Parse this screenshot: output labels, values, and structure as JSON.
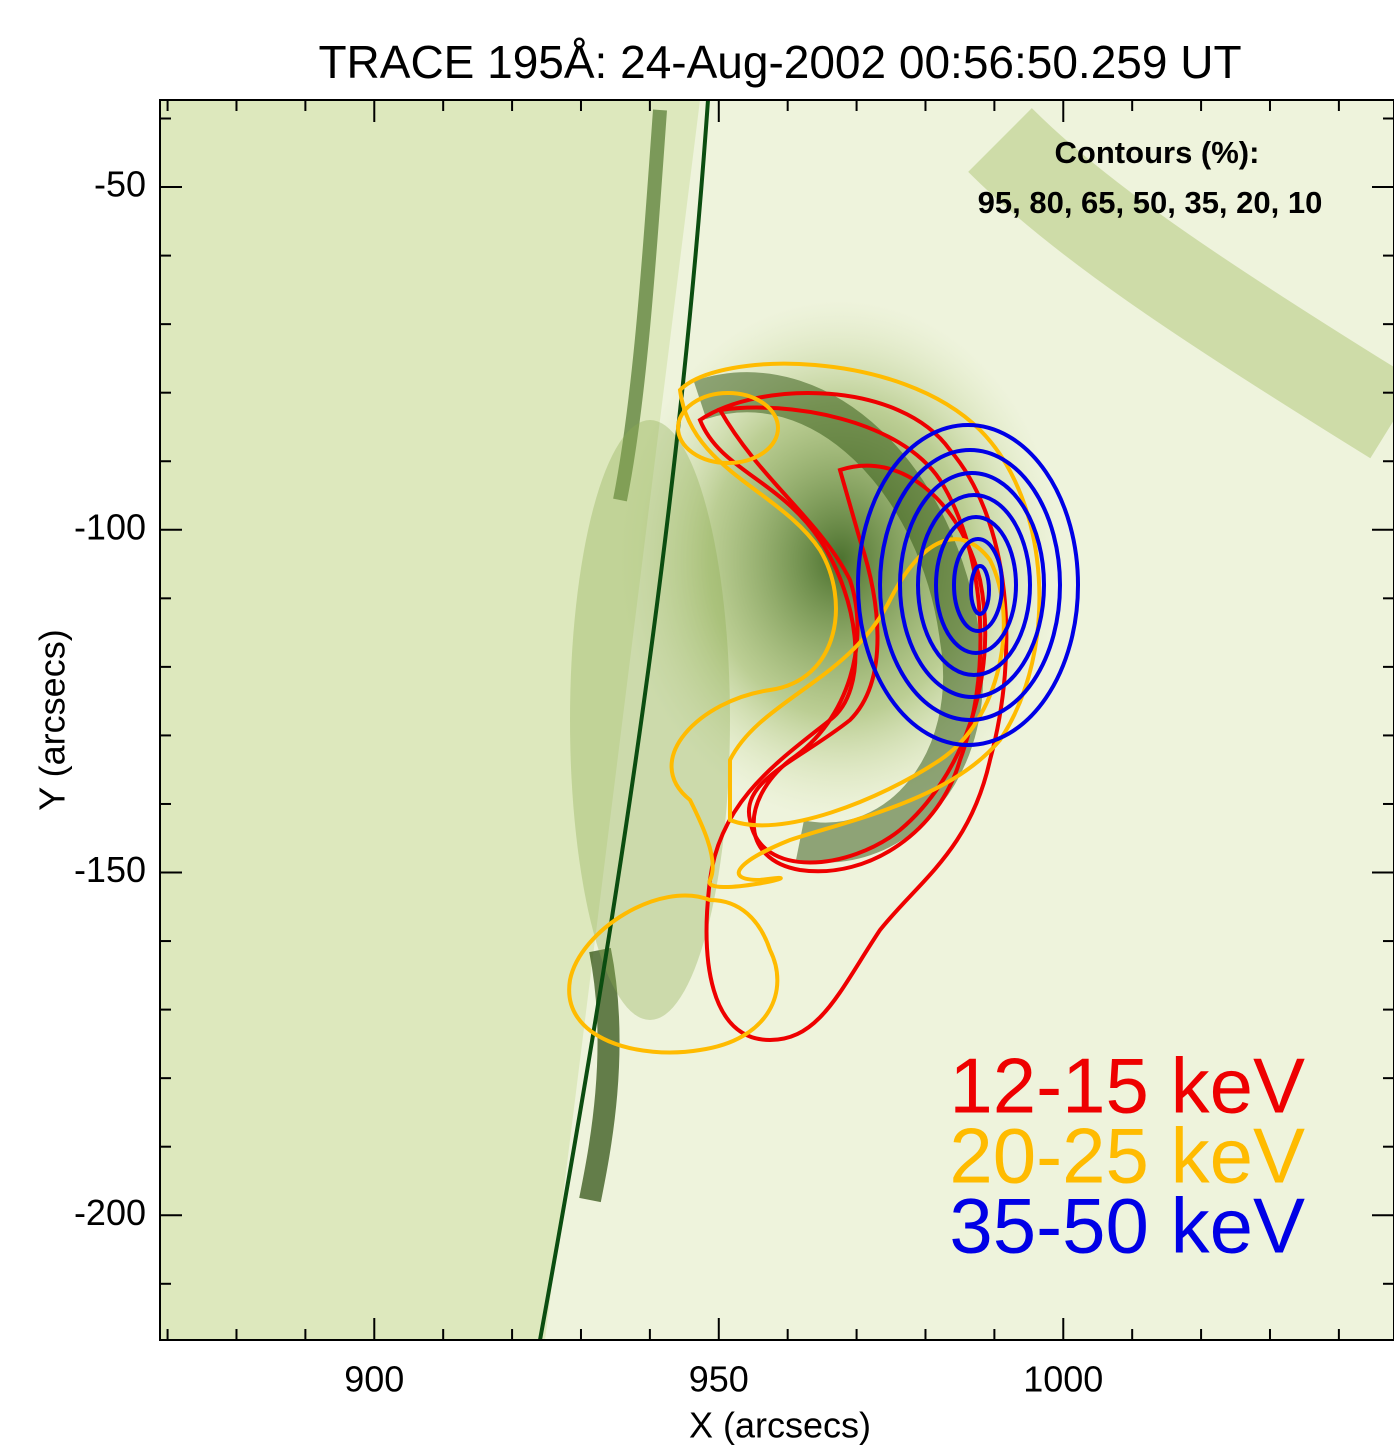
{
  "chart_data": {
    "type": "image",
    "title": "TRACE 195Å:  24-Aug-2002 00:56:50.259 UT",
    "x_label": "X (arcsecs)",
    "y_label": "Y (arcsecs)",
    "xlim": [
      868.9,
      1048
    ],
    "ylim": [
      -218.2,
      -37.3
    ],
    "xticks": [
      900,
      950,
      1000
    ],
    "yticks": [
      -50,
      -100,
      -150,
      -200
    ],
    "xminorticks": [
      870,
      880,
      890,
      910,
      920,
      930,
      940,
      960,
      970,
      980,
      990,
      1010,
      1020,
      1030,
      1040
    ],
    "yminorticks": [
      -40,
      -60,
      -70,
      -80,
      -90,
      -110,
      -120,
      -130,
      -140,
      -160,
      -170,
      -180,
      -190,
      -210
    ],
    "annotation": [
      "Contours (%):",
      "95, 80, 65, 50, 35, 20, 10"
    ],
    "series": [
      {
        "name": "12-15 keV",
        "color": "#ee0000"
      },
      {
        "name": "20-25 keV",
        "color": "#ffbb00"
      },
      {
        "name": "35-50 keV",
        "color": "#0000e6"
      }
    ]
  }
}
